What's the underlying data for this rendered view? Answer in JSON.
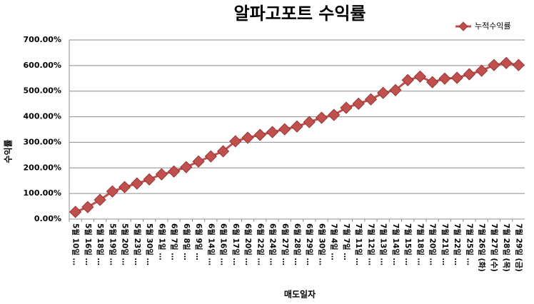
{
  "chart_data": {
    "type": "line",
    "title": "알파고포트 수익률",
    "y_label": "수익률",
    "x_label": "매도일자",
    "categories": [
      "5월 10일 …",
      "5월 16일 …",
      "5월 18일 …",
      "5월 19일 …",
      "5월 20일 …",
      "5월 23일 …",
      "5월 30일 …",
      "6월 1일 …",
      "6월 7일 …",
      "6월 8일 …",
      "6월 9일 …",
      "6월 14일 …",
      "6월 16일 …",
      "6월 17일 …",
      "6월 20일 …",
      "6월 22일 …",
      "6월 24일 …",
      "6월 27일 …",
      "6월 28일 …",
      "6월 29일 …",
      "6월 30일 …",
      "7월 4일 …",
      "7월 7일 …",
      "7월 11일 …",
      "7월 12일 …",
      "7월 13일 …",
      "7월 14일 …",
      "7월 15일 …",
      "7월 18일 …",
      "7월 20일 …",
      "7월 21일 …",
      "7월 22일 …",
      "7월 25일 …",
      "7월 26일 (화)",
      "7월 27일 (수)",
      "7월 28일 (목)",
      "7월 29일 (금)"
    ],
    "series": [
      {
        "name": "누적수익률",
        "color": "#c0504d",
        "values": [
          28,
          47,
          75,
          108,
          125,
          139,
          155,
          175,
          186,
          203,
          225,
          245,
          265,
          304,
          318,
          329,
          340,
          351,
          362,
          379,
          396,
          407,
          435,
          451,
          468,
          493,
          504,
          543,
          557,
          535,
          549,
          552,
          566,
          580,
          602,
          610,
          602
        ]
      }
    ],
    "ylim": [
      0,
      700
    ],
    "yticks": [
      {
        "value": 0,
        "label": "0.00%"
      },
      {
        "value": 100,
        "label": "100.00%"
      },
      {
        "value": 200,
        "label": "200.00%"
      },
      {
        "value": 300,
        "label": "300.00%"
      },
      {
        "value": 400,
        "label": "400.00%"
      },
      {
        "value": 500,
        "label": "500.00%"
      },
      {
        "value": 600,
        "label": "600.00%"
      },
      {
        "value": 700,
        "label": "700.00%"
      }
    ],
    "grid": true,
    "legend": "top-right"
  }
}
